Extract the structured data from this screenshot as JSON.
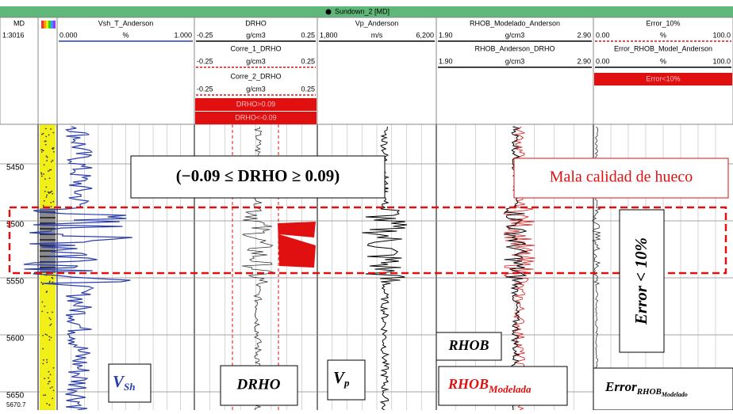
{
  "header": {
    "title": "Sundown_2 [MD]"
  },
  "depth_track": {
    "name": "MD",
    "scale": "1:3016"
  },
  "tracks": [
    {
      "name": "Vsh_T_Anderson",
      "min": "0.000",
      "unit": "%",
      "max": "1.000"
    },
    {
      "name": "DRHO",
      "min": "-0.25",
      "unit": "g/cm3",
      "max": "0.25",
      "extra": [
        {
          "name": "Corre_1_DRHO",
          "min": "-0.25",
          "unit": "g/cm3",
          "max": "0.25"
        },
        {
          "name": "Corre_2_DRHO",
          "min": "-0.25",
          "unit": "g/cm3",
          "max": "0.25"
        }
      ],
      "fills": [
        "DRHO>0.09",
        "DRHO<-0.09"
      ]
    },
    {
      "name": "Vp_Anderson",
      "min": "1,800",
      "unit": "m/s",
      "max": "6,200"
    },
    {
      "name": "RHOB_Modelado_Anderson",
      "min": "1.90",
      "unit": "g/cm3",
      "max": "2.90",
      "extra": [
        {
          "name": "RHOB_Anderson_DRHO",
          "min": "1.90",
          "unit": "g/cm3",
          "max": "2.90"
        }
      ]
    },
    {
      "name": "Error_10%",
      "min": "0.00",
      "unit": "%",
      "max": "100.0",
      "extra": [
        {
          "name": "Error_RHOB_Model_Anderson",
          "min": "0.00",
          "unit": "%",
          "max": "100.0"
        }
      ],
      "fills": [
        "Error<10%"
      ]
    }
  ],
  "depths": [
    "5450",
    "5500",
    "5550",
    "5600",
    "5650",
    "5670.7"
  ],
  "annotations": {
    "drho_range": "(−0.09 ≤  DRHO ≥  0.09)",
    "bad_hole": "Mala calidad de hueco",
    "error_limit": "Error < 10%",
    "vsh": {
      "main": "V",
      "sub": "Sh"
    },
    "drho": "DRHO",
    "vp": {
      "main": "V",
      "sub": "p"
    },
    "rhob": "RHOB",
    "rhob_model": {
      "main": "RHOB",
      "sub": "Modelada"
    },
    "error_model": {
      "main": "Error",
      "sub": "RHOB",
      "subsub": "Modelado"
    }
  }
}
